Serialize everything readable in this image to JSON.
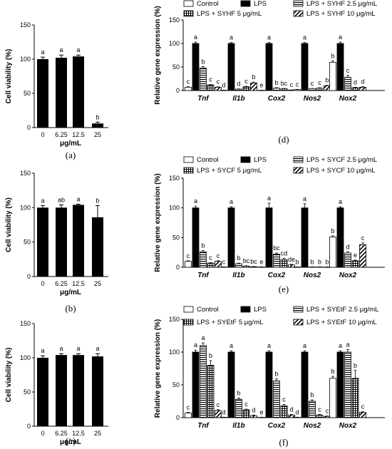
{
  "chart_data": [
    {
      "type": "bar",
      "panel_label": "(a)",
      "ylabel": "Cell viability (%)",
      "xlabel": "μg/mL",
      "ylim": [
        0,
        150
      ],
      "yticks": [
        0,
        50,
        100,
        150
      ],
      "categories": [
        "0",
        "6.25",
        "12.5",
        "25"
      ],
      "values": [
        100,
        102,
        104,
        6
      ],
      "errors": [
        3,
        4,
        2,
        2
      ],
      "letters": [
        "a",
        "a",
        "a",
        "b"
      ]
    },
    {
      "type": "bar",
      "panel_label": "(b)",
      "ylabel": "Cell viability (%)",
      "xlabel": "μg/mL",
      "ylim": [
        0,
        150
      ],
      "yticks": [
        0,
        50,
        100,
        150
      ],
      "categories": [
        "0",
        "6.25",
        "12.5",
        "25"
      ],
      "values": [
        100,
        100,
        104,
        86
      ],
      "errors": [
        3,
        4,
        1,
        17
      ],
      "letters": [
        "a",
        "ab",
        "a",
        "b"
      ]
    },
    {
      "type": "bar",
      "panel_label": "(c)",
      "ylabel": "Cell viability (%)",
      "xlabel": "μg/mL",
      "ylim": [
        0,
        150
      ],
      "yticks": [
        0,
        50,
        100,
        150
      ],
      "categories": [
        "0",
        "6.25",
        "12.5",
        "25"
      ],
      "values": [
        100,
        104,
        104,
        102
      ],
      "errors": [
        3,
        2,
        2,
        4
      ],
      "letters": [
        "a",
        "a",
        "a",
        "a"
      ]
    },
    {
      "type": "bar",
      "panel_label": "(d)",
      "ylabel": "Relative gene expression (%)",
      "ylim": [
        0,
        150
      ],
      "yticks": [
        0,
        50,
        100,
        150
      ],
      "categories": [
        "Tnf",
        "Il1b",
        "Cox2",
        "Nos2",
        "Nox2"
      ],
      "series": [
        {
          "name": "Control",
          "values": [
            7,
            0.5,
            0.5,
            2,
            60
          ],
          "errors": [
            1,
            0.2,
            0.2,
            0.5,
            3
          ],
          "letters": [
            "c",
            "d",
            "e",
            "c",
            "b"
          ]
        },
        {
          "name": "LPS",
          "values": [
            100,
            100,
            100,
            100,
            100
          ],
          "errors": [
            3,
            2,
            2,
            2,
            3
          ],
          "letters": [
            "a",
            "a",
            "a",
            "a",
            "a"
          ]
        },
        {
          "name": "LPS + SYHF 2.5 μg/mL",
          "values": [
            48,
            3,
            5,
            4,
            28
          ],
          "errors": [
            3,
            0.5,
            1,
            0.5,
            4
          ],
          "letters": [
            "b",
            "d",
            "b",
            "c",
            "c"
          ]
        },
        {
          "name": "LPS + SYHF 5 μg/mL",
          "values": [
            12,
            8,
            4,
            5,
            6
          ],
          "errors": [
            1,
            1,
            0.5,
            1,
            1
          ],
          "letters": [
            "c",
            "c",
            "bc",
            "c",
            "d"
          ]
        },
        {
          "name": "LPS + SYHF 10 μg/mL",
          "values": [
            7,
            16,
            1,
            10,
            7
          ],
          "errors": [
            1,
            2,
            0.3,
            1,
            1
          ],
          "letters": [
            "c",
            "b",
            "c",
            "b",
            "d"
          ]
        }
      ]
    },
    {
      "type": "bar",
      "panel_label": "(e)",
      "ylabel": "Relative gene expression (%)",
      "ylim": [
        0,
        150
      ],
      "yticks": [
        0,
        50,
        100,
        150
      ],
      "categories": [
        "Tnf",
        "Il1b",
        "Cox2",
        "Nos2",
        "Nox2"
      ],
      "series": [
        {
          "name": "Control",
          "values": [
            10,
            0.5,
            0.5,
            0.3,
            51
          ],
          "errors": [
            1,
            0.2,
            0.2,
            0.2,
            2
          ],
          "letters": [
            "c",
            "c",
            "e",
            "b",
            "b"
          ]
        },
        {
          "name": "LPS",
          "values": [
            100,
            100,
            100,
            100,
            100
          ],
          "errors": [
            3,
            2,
            8,
            7,
            2
          ],
          "letters": [
            "a",
            "a",
            "a",
            "a",
            "a"
          ]
        },
        {
          "name": "LPS + SYCF 2.5 μg/mL",
          "values": [
            26,
            6,
            22,
            0.5,
            24
          ],
          "errors": [
            2,
            1,
            2,
            0.2,
            2
          ],
          "letters": [
            "b",
            "b",
            "bc",
            "b",
            "d"
          ]
        },
        {
          "name": "LPS + SYCF 5 μg/mL",
          "values": [
            7,
            2,
            13,
            0.5,
            11
          ],
          "errors": [
            1,
            0.5,
            2,
            0.2,
            1
          ],
          "letters": [
            "c",
            "bc",
            "cd",
            "b",
            "e"
          ]
        },
        {
          "name": "LPS + SYCF 10 μg/mL",
          "values": [
            10,
            1,
            4,
            0.3,
            38
          ],
          "errors": [
            1,
            0.3,
            1,
            0.2,
            3
          ],
          "letters": [
            "c",
            "bc",
            "de",
            "b",
            "c"
          ]
        }
      ]
    },
    {
      "type": "bar",
      "panel_label": "(f)",
      "ylabel": "Relative gene expression (%)",
      "ylim": [
        0,
        150
      ],
      "yticks": [
        0,
        50,
        100,
        150
      ],
      "categories": [
        "Tnf",
        "Il1b",
        "Cox2",
        "Nos2",
        "Nox2"
      ],
      "series": [
        {
          "name": "Control",
          "values": [
            7,
            0.5,
            0.5,
            0.5,
            60
          ],
          "errors": [
            1,
            0.2,
            0.2,
            0.2,
            3
          ],
          "letters": [
            "c",
            "d",
            "e",
            "d",
            "b"
          ]
        },
        {
          "name": "LPS",
          "values": [
            100,
            100,
            100,
            100,
            100
          ],
          "errors": [
            3,
            2,
            2,
            2,
            2
          ],
          "letters": [
            "a",
            "a",
            "a",
            "a",
            "a"
          ]
        },
        {
          "name": "LPS + SYEtF 2.5 μg/mL",
          "values": [
            110,
            28,
            56,
            25,
            100
          ],
          "errors": [
            4,
            2,
            3,
            2,
            4
          ],
          "letters": [
            "a",
            "b",
            "b",
            "b",
            "a"
          ]
        },
        {
          "name": "LPS + SYEtF 5 μg/mL",
          "values": [
            80,
            12,
            18,
            4,
            60
          ],
          "errors": [
            7,
            1,
            2,
            1,
            12
          ],
          "letters": [
            "b",
            "c",
            "c",
            "c",
            "b"
          ]
        },
        {
          "name": "LPS + SYEtF 10 μg/mL",
          "values": [
            11,
            3,
            4,
            2,
            8
          ],
          "errors": [
            1,
            1,
            1,
            0.5,
            1
          ],
          "letters": [
            "c",
            "d",
            "d",
            "c",
            "c"
          ]
        }
      ]
    }
  ]
}
